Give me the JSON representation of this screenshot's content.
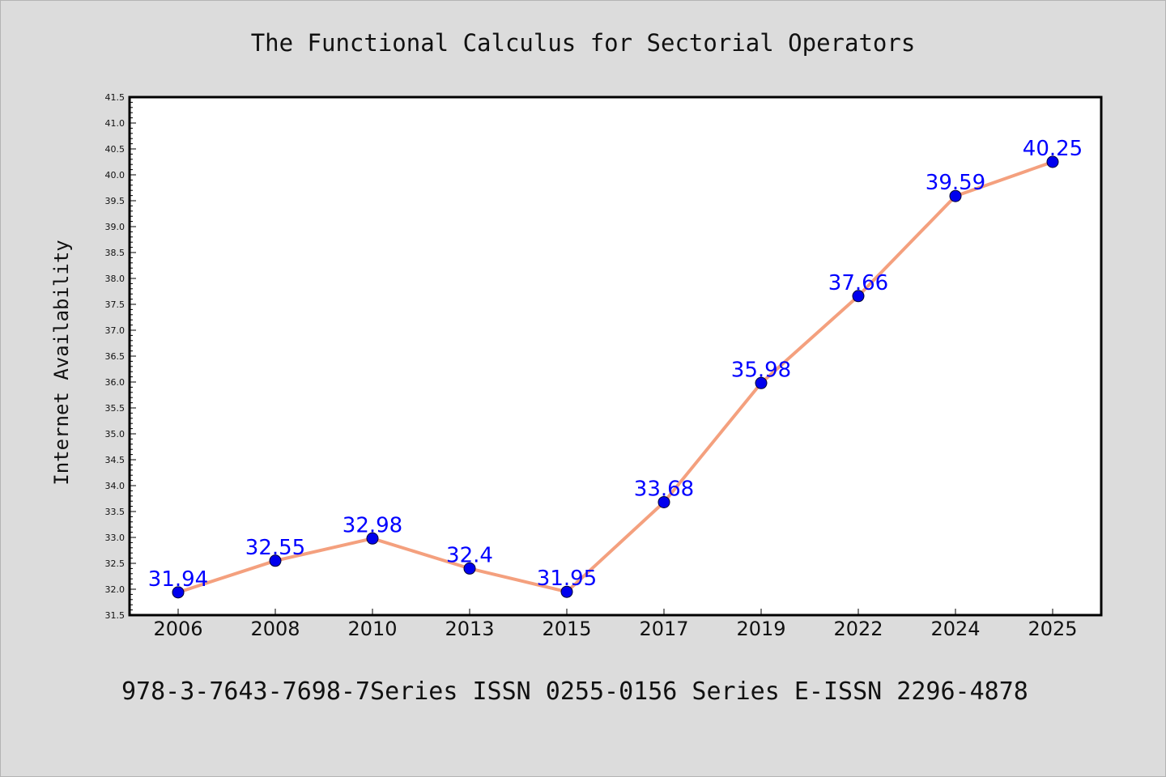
{
  "chart_data": {
    "type": "line",
    "title": "The Functional Calculus for Sectorial Operators",
    "ylabel": "Internet Availability",
    "xlabel": "",
    "categories": [
      "2006",
      "2008",
      "2010",
      "2013",
      "2015",
      "2017",
      "2019",
      "2022",
      "2024",
      "2025"
    ],
    "values": [
      31.94,
      32.55,
      32.98,
      32.4,
      31.95,
      33.68,
      35.98,
      37.66,
      39.59,
      40.25
    ],
    "data_labels": [
      "31.94",
      "32.55",
      "32.98",
      "32.4",
      "31.95",
      "33.68",
      "35.98",
      "37.66",
      "39.59",
      "40.25"
    ],
    "ylim": [
      31.5,
      41.5
    ],
    "yticks": [
      "31.5",
      "32.0",
      "32.5",
      "33.0",
      "33.5",
      "34.0",
      "34.5",
      "35.0",
      "35.5",
      "36.0",
      "36.5",
      "37.0",
      "37.5",
      "38.0",
      "38.5",
      "39.0",
      "39.5",
      "40.0",
      "40.5",
      "41.0",
      "41.5"
    ],
    "grid": false,
    "legend": "none",
    "footer": "978-3-7643-7698-7Series ISSN 0255-0156 Series E-ISSN 2296-4878",
    "colors": {
      "line": "#f4a07e",
      "marker": "#0000ee",
      "label": "#0000ff",
      "background": "#dcdcdc",
      "plot_area": "#ffffff"
    }
  }
}
